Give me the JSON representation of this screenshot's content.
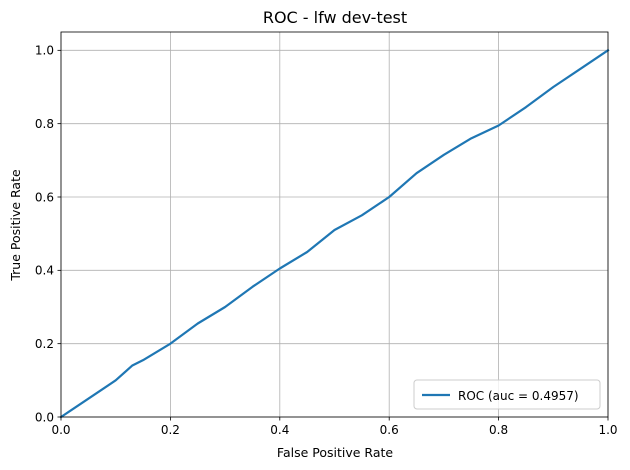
{
  "chart_data": {
    "type": "line",
    "title": "ROC - lfw dev-test",
    "xlabel": "False Positive Rate",
    "ylabel": "True Positive Rate",
    "xlim": [
      0.0,
      1.0
    ],
    "ylim": [
      0.0,
      1.05
    ],
    "xticks": [
      "0.0",
      "0.2",
      "0.4",
      "0.6",
      "0.8",
      "1.0"
    ],
    "yticks": [
      "0.0",
      "0.2",
      "0.4",
      "0.6",
      "0.8",
      "1.0"
    ],
    "grid": true,
    "legend_position": "lower right",
    "series": [
      {
        "name": "ROC (auc = 0.4957)",
        "color": "#1f77b4",
        "x": [
          0.0,
          0.02,
          0.05,
          0.08,
          0.1,
          0.13,
          0.15,
          0.2,
          0.25,
          0.3,
          0.35,
          0.4,
          0.45,
          0.5,
          0.55,
          0.6,
          0.65,
          0.7,
          0.75,
          0.8,
          0.85,
          0.9,
          0.95,
          1.0
        ],
        "y": [
          0.0,
          0.02,
          0.05,
          0.08,
          0.1,
          0.14,
          0.155,
          0.2,
          0.255,
          0.3,
          0.355,
          0.405,
          0.45,
          0.51,
          0.55,
          0.6,
          0.665,
          0.715,
          0.76,
          0.795,
          0.845,
          0.9,
          0.95,
          1.0
        ]
      }
    ]
  }
}
